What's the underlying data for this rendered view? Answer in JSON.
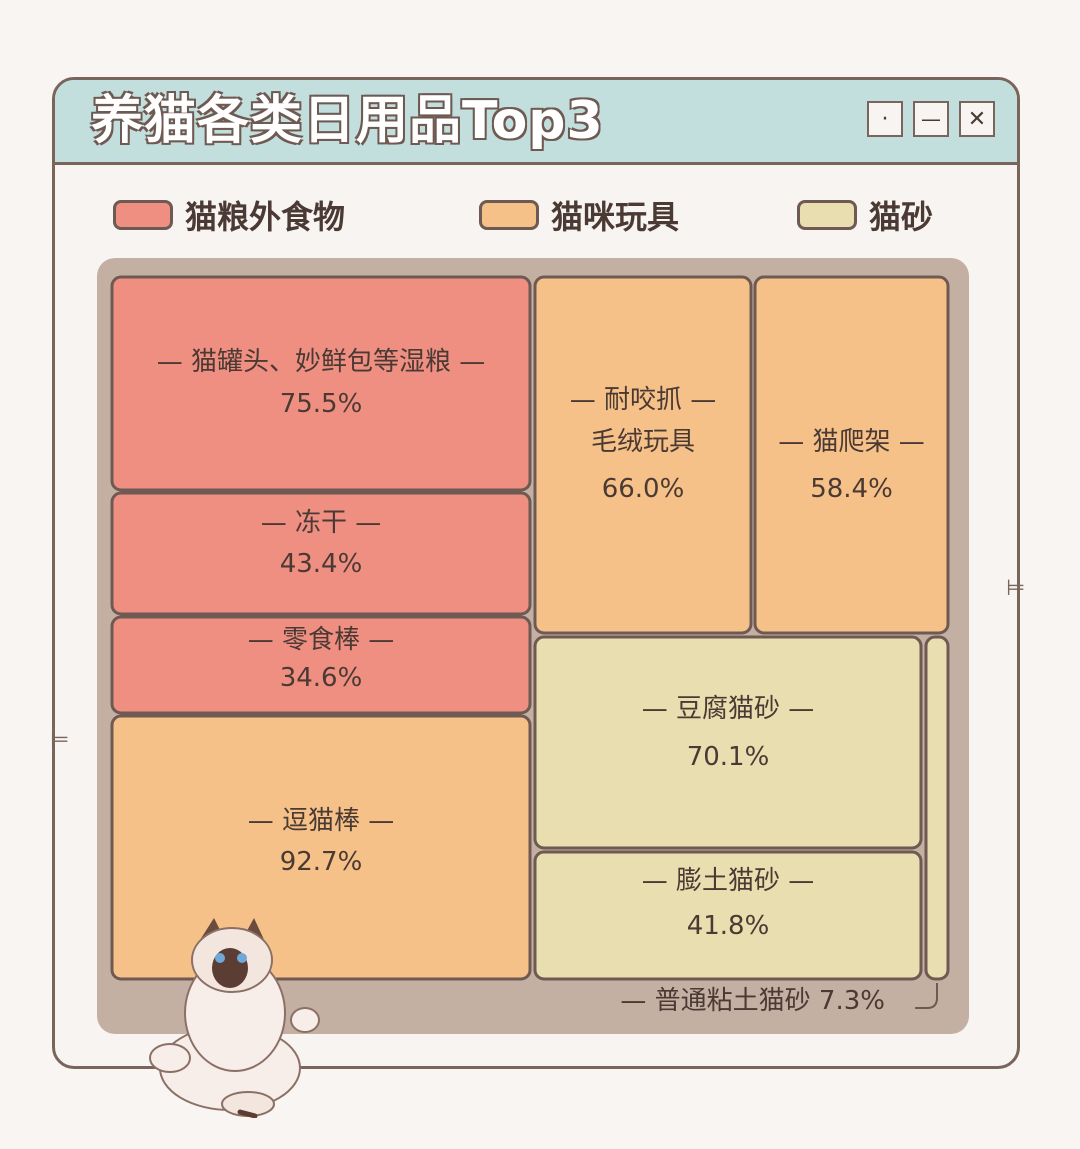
{
  "window": {
    "title": "养猫各类日用品Top3",
    "buttons": {
      "dot": "·",
      "minimize": "—",
      "close": "✕"
    }
  },
  "legend": [
    {
      "label": "猫粮外食物",
      "color": "#ee8f82"
    },
    {
      "label": "猫咪玩具",
      "color": "#f5c189"
    },
    {
      "label": "猫砂",
      "color": "#e8deb0"
    }
  ],
  "colors": {
    "outline": "#6e5a52",
    "frame": "#c4b0a3",
    "titlebar": "#c2dedd"
  },
  "chart_data": {
    "type": "treemap",
    "title": "养猫各类日用品Top3",
    "groups": [
      {
        "name": "猫粮外食物",
        "color": "#ee8f82",
        "items": [
          {
            "label": "猫罐头、妙鲜包等湿粮",
            "value": 75.5,
            "value_label": "75.5%"
          },
          {
            "label": "冻干",
            "value": 43.4,
            "value_label": "43.4%"
          },
          {
            "label": "零食棒",
            "value": 34.6,
            "value_label": "34.6%"
          }
        ]
      },
      {
        "name": "猫咪玩具",
        "color": "#f5c189",
        "items": [
          {
            "label": "逗猫棒",
            "value": 92.7,
            "value_label": "92.7%"
          },
          {
            "label": "耐咬抓毛绒玩具",
            "label_lines": [
              "耐咬抓",
              "毛绒玩具"
            ],
            "value": 66.0,
            "value_label": "66.0%"
          },
          {
            "label": "猫爬架",
            "value": 58.4,
            "value_label": "58.4%"
          }
        ]
      },
      {
        "name": "猫砂",
        "color": "#e8deb0",
        "items": [
          {
            "label": "豆腐猫砂",
            "value": 70.1,
            "value_label": "70.1%"
          },
          {
            "label": "膨土猫砂",
            "value": 41.8,
            "value_label": "41.8%"
          },
          {
            "label": "普通粘土猫砂",
            "value": 7.3,
            "value_label": "7.3%"
          }
        ]
      }
    ]
  }
}
